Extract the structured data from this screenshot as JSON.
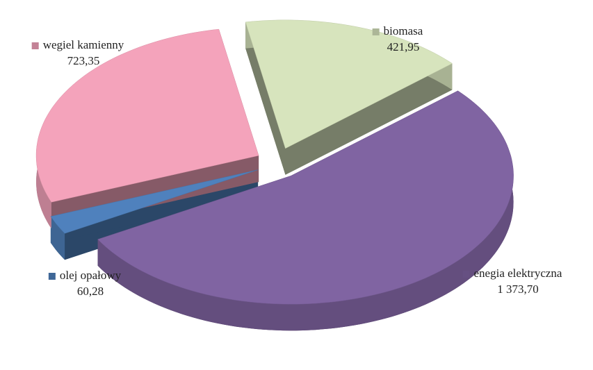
{
  "chart_data": {
    "type": "pie3d",
    "categories": [
      "biomasa",
      "enegia elektryczna",
      "olej opałowy",
      "wegiel kamienny"
    ],
    "values": [
      421.95,
      1373.7,
      60.28,
      723.35
    ],
    "value_labels": [
      "421,95",
      "1 373,70",
      "60,28",
      "723,35"
    ],
    "colors": [
      "#d7e4bd",
      "#8064a2",
      "#4f81bd",
      "#f4a3bb"
    ]
  }
}
